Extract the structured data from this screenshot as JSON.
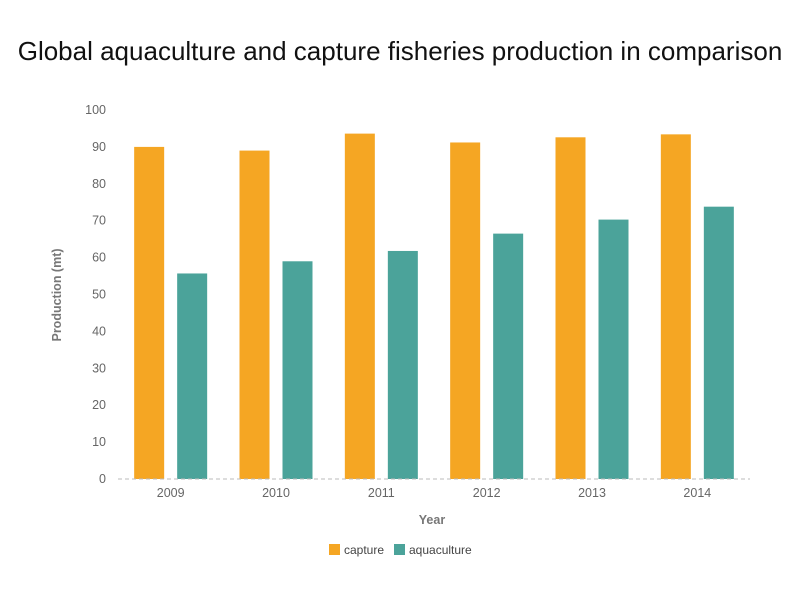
{
  "chart_data": {
    "type": "bar",
    "title": "Global aquaculture and capture fisheries production in comparison",
    "xlabel": "Year",
    "ylabel": "Production (mt)",
    "categories": [
      "2009",
      "2010",
      "2011",
      "2012",
      "2013",
      "2014"
    ],
    "series": [
      {
        "name": "capture",
        "color": "#F5A623",
        "values": [
          90.0,
          89.0,
          93.6,
          91.2,
          92.6,
          93.4
        ]
      },
      {
        "name": "aquaculture",
        "color": "#4BA39A",
        "values": [
          55.7,
          59.0,
          61.8,
          66.5,
          70.3,
          73.8
        ]
      }
    ],
    "ylim": [
      0,
      100
    ],
    "yticks": [
      0,
      10,
      20,
      30,
      40,
      50,
      60,
      70,
      80,
      90,
      100
    ],
    "grid": false,
    "legend": "bottom-center"
  }
}
